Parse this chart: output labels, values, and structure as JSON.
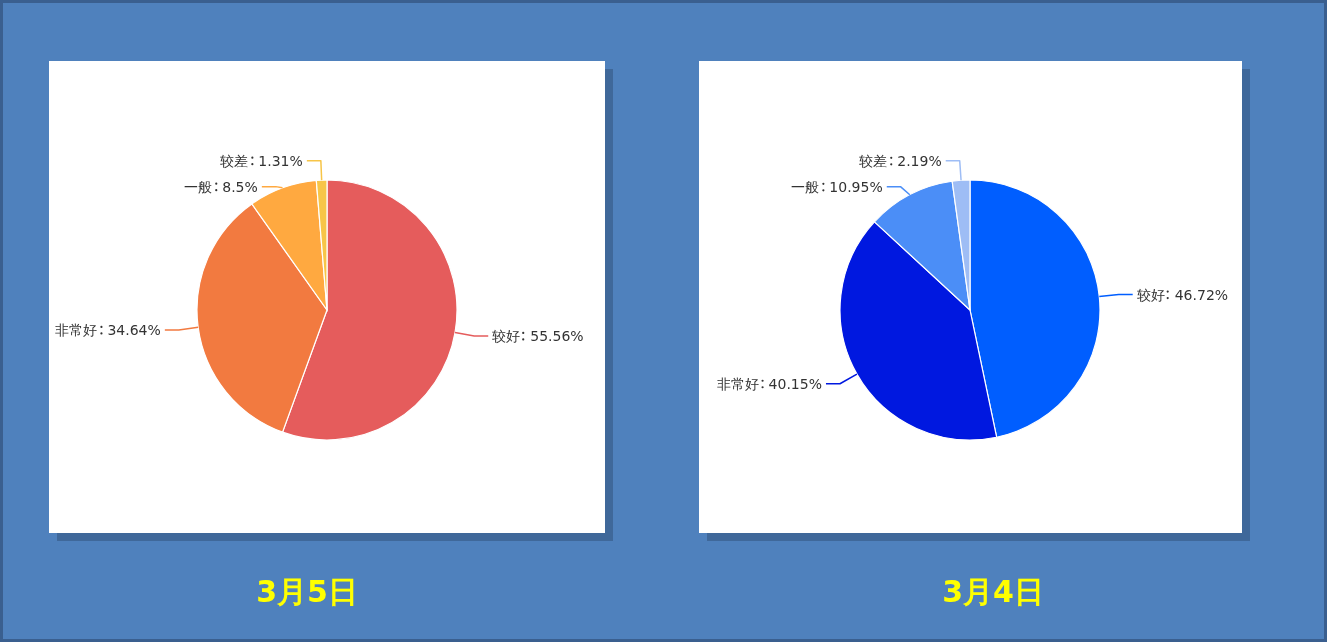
{
  "chart_data": [
    {
      "type": "pie",
      "title": "3月5日",
      "categories": [
        "较好",
        "非常好",
        "一般",
        "较差"
      ],
      "values": [
        55.56,
        34.64,
        8.5,
        1.31
      ],
      "value_labels": [
        "55.56%",
        "34.64%",
        "8.5%",
        "1.31%"
      ],
      "colors": [
        "#e55c5c",
        "#f27a40",
        "#ffa940",
        "#f7c548"
      ]
    },
    {
      "type": "pie",
      "title": "3月4日",
      "categories": [
        "较好",
        "非常好",
        "一般",
        "较差"
      ],
      "values": [
        46.72,
        40.15,
        10.95,
        2.19
      ],
      "value_labels": [
        "46.72%",
        "40.15%",
        "10.95%",
        "2.19%"
      ],
      "colors": [
        "#005eff",
        "#0018e0",
        "#4b8ef7",
        "#9ebdf5"
      ]
    }
  ]
}
